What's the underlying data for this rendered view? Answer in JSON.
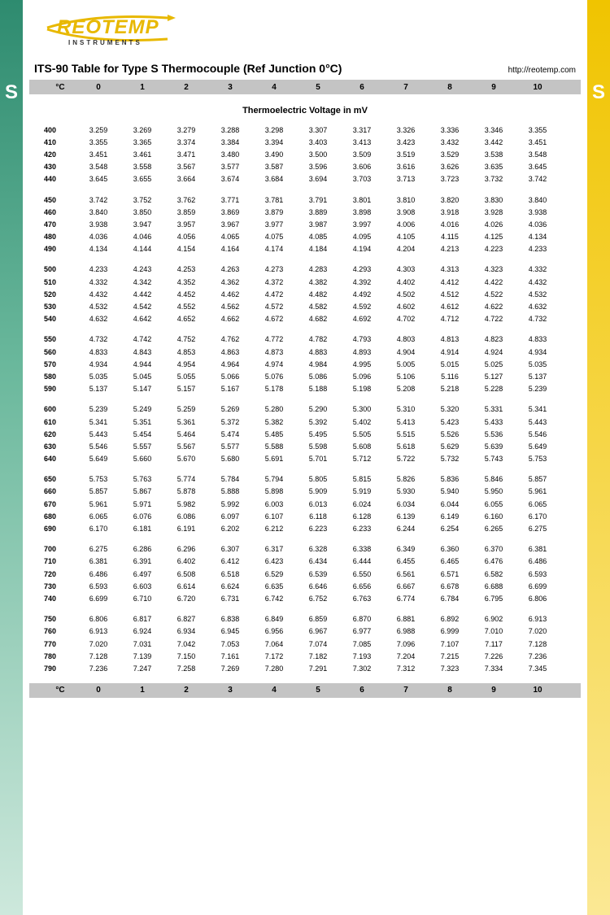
{
  "logo": {
    "main": "REOTEMP",
    "sub": "INSTRUMENTS"
  },
  "title": "ITS-90 Table for Type S Thermocouple (Ref Junction 0°C)",
  "url": "http://reotemp.com",
  "subtitle": "Thermoelectric Voltage in mV",
  "side_letter": "S",
  "colors": {
    "left_grad_top": "#2e8b6f",
    "right_grad_top": "#f0c400",
    "band": "#c4c4c4",
    "logo_yellow": "#e8b800"
  },
  "columns": [
    "°C",
    "0",
    "1",
    "2",
    "3",
    "4",
    "5",
    "6",
    "7",
    "8",
    "9",
    "10"
  ],
  "groups": [
    [
      {
        "t": "400",
        "v": [
          "3.259",
          "3.269",
          "3.279",
          "3.288",
          "3.298",
          "3.307",
          "3.317",
          "3.326",
          "3.336",
          "3.346",
          "3.355"
        ]
      },
      {
        "t": "410",
        "v": [
          "3.355",
          "3.365",
          "3.374",
          "3.384",
          "3.394",
          "3.403",
          "3.413",
          "3.423",
          "3.432",
          "3.442",
          "3.451"
        ]
      },
      {
        "t": "420",
        "v": [
          "3.451",
          "3.461",
          "3.471",
          "3.480",
          "3.490",
          "3.500",
          "3.509",
          "3.519",
          "3.529",
          "3.538",
          "3.548"
        ]
      },
      {
        "t": "430",
        "v": [
          "3.548",
          "3.558",
          "3.567",
          "3.577",
          "3.587",
          "3.596",
          "3.606",
          "3.616",
          "3.626",
          "3.635",
          "3.645"
        ]
      },
      {
        "t": "440",
        "v": [
          "3.645",
          "3.655",
          "3.664",
          "3.674",
          "3.684",
          "3.694",
          "3.703",
          "3.713",
          "3.723",
          "3.732",
          "3.742"
        ]
      }
    ],
    [
      {
        "t": "450",
        "v": [
          "3.742",
          "3.752",
          "3.762",
          "3.771",
          "3.781",
          "3.791",
          "3.801",
          "3.810",
          "3.820",
          "3.830",
          "3.840"
        ]
      },
      {
        "t": "460",
        "v": [
          "3.840",
          "3.850",
          "3.859",
          "3.869",
          "3.879",
          "3.889",
          "3.898",
          "3.908",
          "3.918",
          "3.928",
          "3.938"
        ]
      },
      {
        "t": "470",
        "v": [
          "3.938",
          "3.947",
          "3.957",
          "3.967",
          "3.977",
          "3.987",
          "3.997",
          "4.006",
          "4.016",
          "4.026",
          "4.036"
        ]
      },
      {
        "t": "480",
        "v": [
          "4.036",
          "4.046",
          "4.056",
          "4.065",
          "4.075",
          "4.085",
          "4.095",
          "4.105",
          "4.115",
          "4.125",
          "4.134"
        ]
      },
      {
        "t": "490",
        "v": [
          "4.134",
          "4.144",
          "4.154",
          "4.164",
          "4.174",
          "4.184",
          "4.194",
          "4.204",
          "4.213",
          "4.223",
          "4.233"
        ]
      }
    ],
    [
      {
        "t": "500",
        "v": [
          "4.233",
          "4.243",
          "4.253",
          "4.263",
          "4.273",
          "4.283",
          "4.293",
          "4.303",
          "4.313",
          "4.323",
          "4.332"
        ]
      },
      {
        "t": "510",
        "v": [
          "4.332",
          "4.342",
          "4.352",
          "4.362",
          "4.372",
          "4.382",
          "4.392",
          "4.402",
          "4.412",
          "4.422",
          "4.432"
        ]
      },
      {
        "t": "520",
        "v": [
          "4.432",
          "4.442",
          "4.452",
          "4.462",
          "4.472",
          "4.482",
          "4.492",
          "4.502",
          "4.512",
          "4.522",
          "4.532"
        ]
      },
      {
        "t": "530",
        "v": [
          "4.532",
          "4.542",
          "4.552",
          "4.562",
          "4.572",
          "4.582",
          "4.592",
          "4.602",
          "4.612",
          "4.622",
          "4.632"
        ]
      },
      {
        "t": "540",
        "v": [
          "4.632",
          "4.642",
          "4.652",
          "4.662",
          "4.672",
          "4.682",
          "4.692",
          "4.702",
          "4.712",
          "4.722",
          "4.732"
        ]
      }
    ],
    [
      {
        "t": "550",
        "v": [
          "4.732",
          "4.742",
          "4.752",
          "4.762",
          "4.772",
          "4.782",
          "4.793",
          "4.803",
          "4.813",
          "4.823",
          "4.833"
        ]
      },
      {
        "t": "560",
        "v": [
          "4.833",
          "4.843",
          "4.853",
          "4.863",
          "4.873",
          "4.883",
          "4.893",
          "4.904",
          "4.914",
          "4.924",
          "4.934"
        ]
      },
      {
        "t": "570",
        "v": [
          "4.934",
          "4.944",
          "4.954",
          "4.964",
          "4.974",
          "4.984",
          "4.995",
          "5.005",
          "5.015",
          "5.025",
          "5.035"
        ]
      },
      {
        "t": "580",
        "v": [
          "5.035",
          "5.045",
          "5.055",
          "5.066",
          "5.076",
          "5.086",
          "5.096",
          "5.106",
          "5.116",
          "5.127",
          "5.137"
        ]
      },
      {
        "t": "590",
        "v": [
          "5.137",
          "5.147",
          "5.157",
          "5.167",
          "5.178",
          "5.188",
          "5.198",
          "5.208",
          "5.218",
          "5.228",
          "5.239"
        ]
      }
    ],
    [
      {
        "t": "600",
        "v": [
          "5.239",
          "5.249",
          "5.259",
          "5.269",
          "5.280",
          "5.290",
          "5.300",
          "5.310",
          "5.320",
          "5.331",
          "5.341"
        ]
      },
      {
        "t": "610",
        "v": [
          "5.341",
          "5.351",
          "5.361",
          "5.372",
          "5.382",
          "5.392",
          "5.402",
          "5.413",
          "5.423",
          "5.433",
          "5.443"
        ]
      },
      {
        "t": "620",
        "v": [
          "5.443",
          "5.454",
          "5.464",
          "5.474",
          "5.485",
          "5.495",
          "5.505",
          "5.515",
          "5.526",
          "5.536",
          "5.546"
        ]
      },
      {
        "t": "630",
        "v": [
          "5.546",
          "5.557",
          "5.567",
          "5.577",
          "5.588",
          "5.598",
          "5.608",
          "5.618",
          "5.629",
          "5.639",
          "5.649"
        ]
      },
      {
        "t": "640",
        "v": [
          "5.649",
          "5.660",
          "5.670",
          "5.680",
          "5.691",
          "5.701",
          "5.712",
          "5.722",
          "5.732",
          "5.743",
          "5.753"
        ]
      }
    ],
    [
      {
        "t": "650",
        "v": [
          "5.753",
          "5.763",
          "5.774",
          "5.784",
          "5.794",
          "5.805",
          "5.815",
          "5.826",
          "5.836",
          "5.846",
          "5.857"
        ]
      },
      {
        "t": "660",
        "v": [
          "5.857",
          "5.867",
          "5.878",
          "5.888",
          "5.898",
          "5.909",
          "5.919",
          "5.930",
          "5.940",
          "5.950",
          "5.961"
        ]
      },
      {
        "t": "670",
        "v": [
          "5.961",
          "5.971",
          "5.982",
          "5.992",
          "6.003",
          "6.013",
          "6.024",
          "6.034",
          "6.044",
          "6.055",
          "6.065"
        ]
      },
      {
        "t": "680",
        "v": [
          "6.065",
          "6.076",
          "6.086",
          "6.097",
          "6.107",
          "6.118",
          "6.128",
          "6.139",
          "6.149",
          "6.160",
          "6.170"
        ]
      },
      {
        "t": "690",
        "v": [
          "6.170",
          "6.181",
          "6.191",
          "6.202",
          "6.212",
          "6.223",
          "6.233",
          "6.244",
          "6.254",
          "6.265",
          "6.275"
        ]
      }
    ],
    [
      {
        "t": "700",
        "v": [
          "6.275",
          "6.286",
          "6.296",
          "6.307",
          "6.317",
          "6.328",
          "6.338",
          "6.349",
          "6.360",
          "6.370",
          "6.381"
        ]
      },
      {
        "t": "710",
        "v": [
          "6.381",
          "6.391",
          "6.402",
          "6.412",
          "6.423",
          "6.434",
          "6.444",
          "6.455",
          "6.465",
          "6.476",
          "6.486"
        ]
      },
      {
        "t": "720",
        "v": [
          "6.486",
          "6.497",
          "6.508",
          "6.518",
          "6.529",
          "6.539",
          "6.550",
          "6.561",
          "6.571",
          "6.582",
          "6.593"
        ]
      },
      {
        "t": "730",
        "v": [
          "6.593",
          "6.603",
          "6.614",
          "6.624",
          "6.635",
          "6.646",
          "6.656",
          "6.667",
          "6.678",
          "6.688",
          "6.699"
        ]
      },
      {
        "t": "740",
        "v": [
          "6.699",
          "6.710",
          "6.720",
          "6.731",
          "6.742",
          "6.752",
          "6.763",
          "6.774",
          "6.784",
          "6.795",
          "6.806"
        ]
      }
    ],
    [
      {
        "t": "750",
        "v": [
          "6.806",
          "6.817",
          "6.827",
          "6.838",
          "6.849",
          "6.859",
          "6.870",
          "6.881",
          "6.892",
          "6.902",
          "6.913"
        ]
      },
      {
        "t": "760",
        "v": [
          "6.913",
          "6.924",
          "6.934",
          "6.945",
          "6.956",
          "6.967",
          "6.977",
          "6.988",
          "6.999",
          "7.010",
          "7.020"
        ]
      },
      {
        "t": "770",
        "v": [
          "7.020",
          "7.031",
          "7.042",
          "7.053",
          "7.064",
          "7.074",
          "7.085",
          "7.096",
          "7.107",
          "7.117",
          "7.128"
        ]
      },
      {
        "t": "780",
        "v": [
          "7.128",
          "7.139",
          "7.150",
          "7.161",
          "7.172",
          "7.182",
          "7.193",
          "7.204",
          "7.215",
          "7.226",
          "7.236"
        ]
      },
      {
        "t": "790",
        "v": [
          "7.236",
          "7.247",
          "7.258",
          "7.269",
          "7.280",
          "7.291",
          "7.302",
          "7.312",
          "7.323",
          "7.334",
          "7.345"
        ]
      }
    ]
  ]
}
